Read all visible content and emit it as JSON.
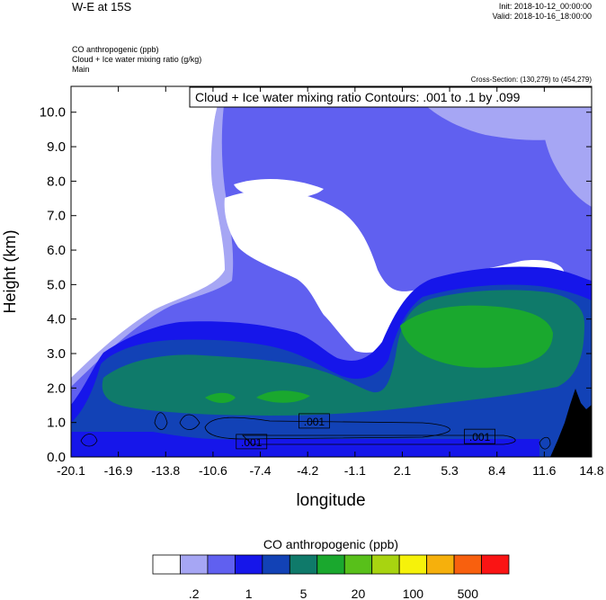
{
  "header": {
    "title": "W-E at 15S",
    "init": "Init: 2018-10-12_00:00:00",
    "valid": "Valid: 2018-10-16_18:00:00",
    "field1": "CO anthropogenic   (ppb)",
    "field2": "Cloud + Ice water mixing ratio   (g/kg)",
    "domain": "Main",
    "cross_section": "Cross-Section: (130,279) to (454,279)"
  },
  "chart_data": {
    "type": "heatmap",
    "xlabel": "longitude",
    "ylabel": "Height (km)",
    "x_ticks": [
      "-20.1",
      "-16.9",
      "-13.8",
      "-10.6",
      "-7.4",
      "-4.2",
      "-1.1",
      "2.1",
      "5.3",
      "8.4",
      "11.6",
      "14.8"
    ],
    "y_ticks": [
      "0.0",
      "1.0",
      "2.0",
      "3.0",
      "4.0",
      "5.0",
      "6.0",
      "7.0",
      "8.0",
      "9.0",
      "10.0"
    ],
    "xlim": [
      -20.1,
      14.8
    ],
    "ylim": [
      0.0,
      10.75
    ],
    "contour_title": "Cloud + Ice water mixing ratio Contours: .001 to .1 by .099",
    "contour_labels": [
      {
        "text": ".001",
        "x": -3.8,
        "y": 1.02
      },
      {
        "text": ".001",
        "x": -8.0,
        "y": 0.42
      },
      {
        "text": ".001",
        "x": 7.3,
        "y": 0.57
      }
    ],
    "colorbar": {
      "title": "CO anthropogenic  (ppb)",
      "colors": [
        "#ffffff",
        "#a6a6f4",
        "#6060f0",
        "#1616ea",
        "#1242b6",
        "#0f7a6a",
        "#1aa82e",
        "#58c01a",
        "#a8d410",
        "#f6f20a",
        "#f6b00c",
        "#f8600e",
        "#fa1414"
      ],
      "tick_labels": [
        ".2",
        "1",
        "5",
        "20",
        "100",
        "500"
      ]
    }
  }
}
